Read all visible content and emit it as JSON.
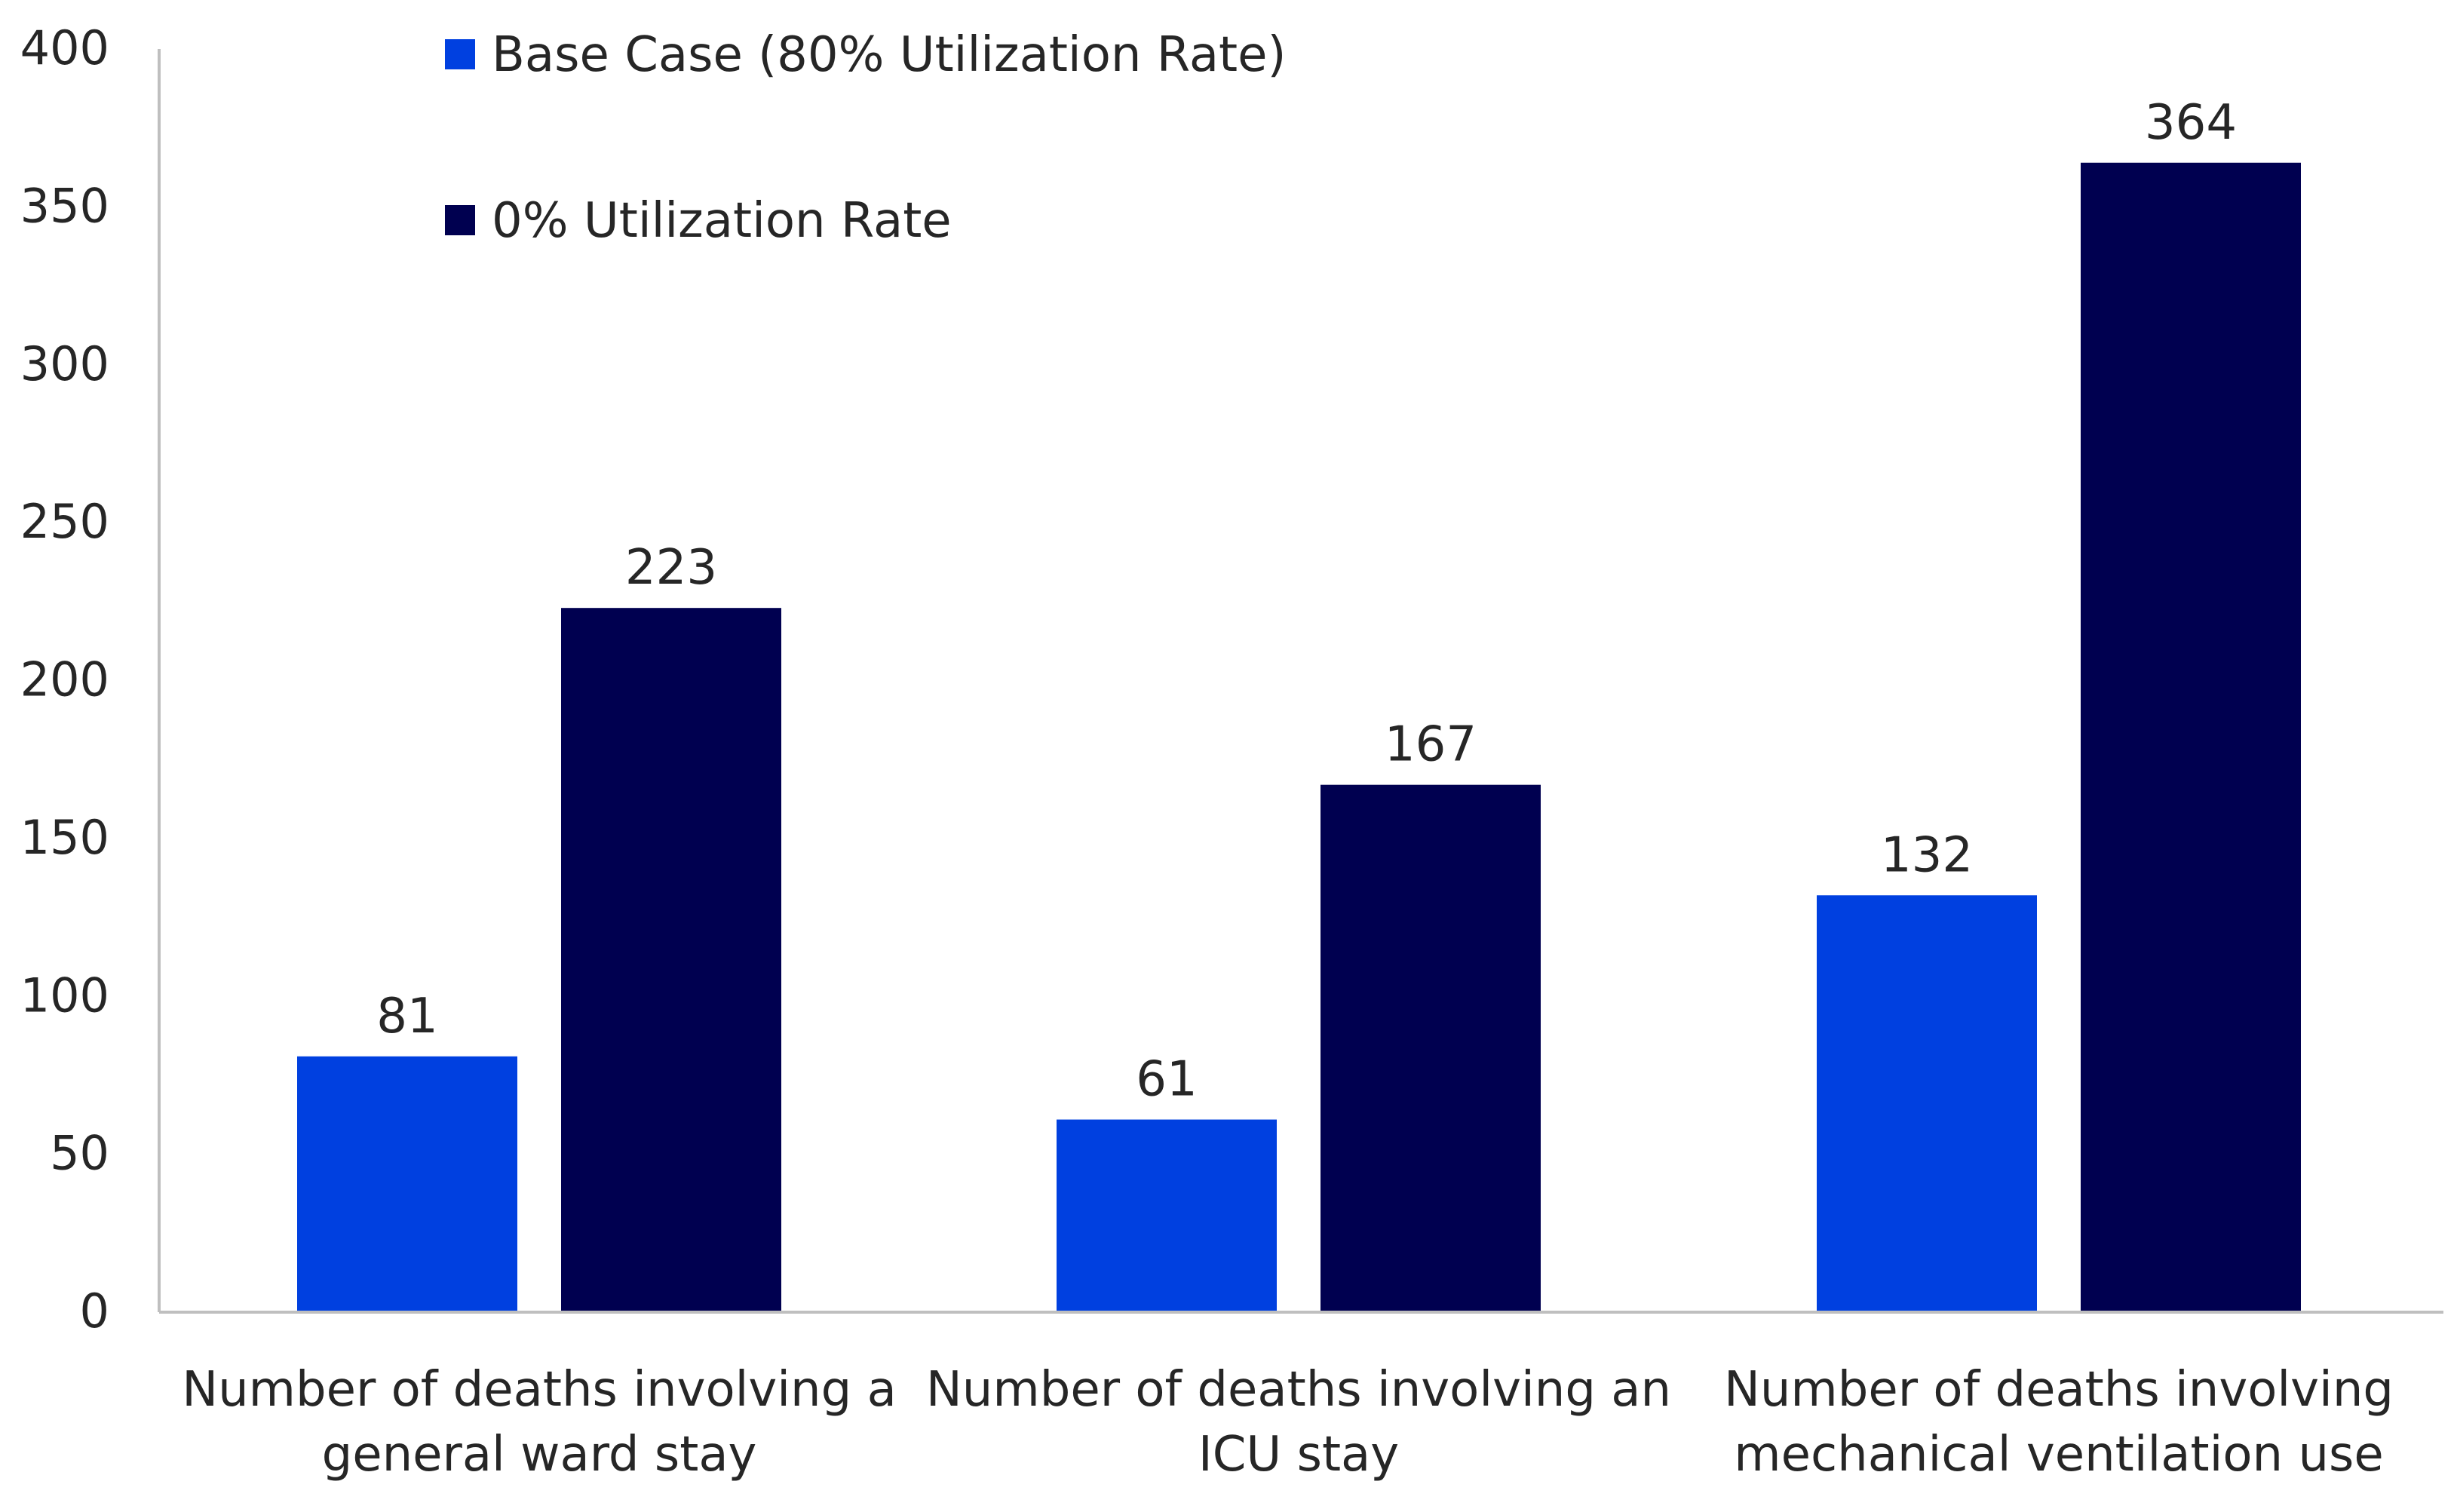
{
  "chart_data": {
    "type": "bar",
    "title": "",
    "xlabel": "",
    "ylabel": "",
    "ylim": [
      0,
      400
    ],
    "yticks": [
      0,
      50,
      100,
      150,
      200,
      250,
      300,
      350,
      400
    ],
    "grid": false,
    "legend_position": "top-left",
    "categories": [
      [
        "Number of deaths involving a",
        "general ward stay"
      ],
      [
        "Number of deaths involving an",
        "ICU stay"
      ],
      [
        "Number of deaths involving",
        "mechanical ventilation use"
      ]
    ],
    "series": [
      {
        "name": "Base Case (80% Utilization Rate)",
        "color": "#0040e0",
        "values": [
          81,
          61,
          132
        ]
      },
      {
        "name": "0% Utilization Rate",
        "color": "#000050",
        "values": [
          223,
          167,
          364
        ]
      }
    ]
  }
}
